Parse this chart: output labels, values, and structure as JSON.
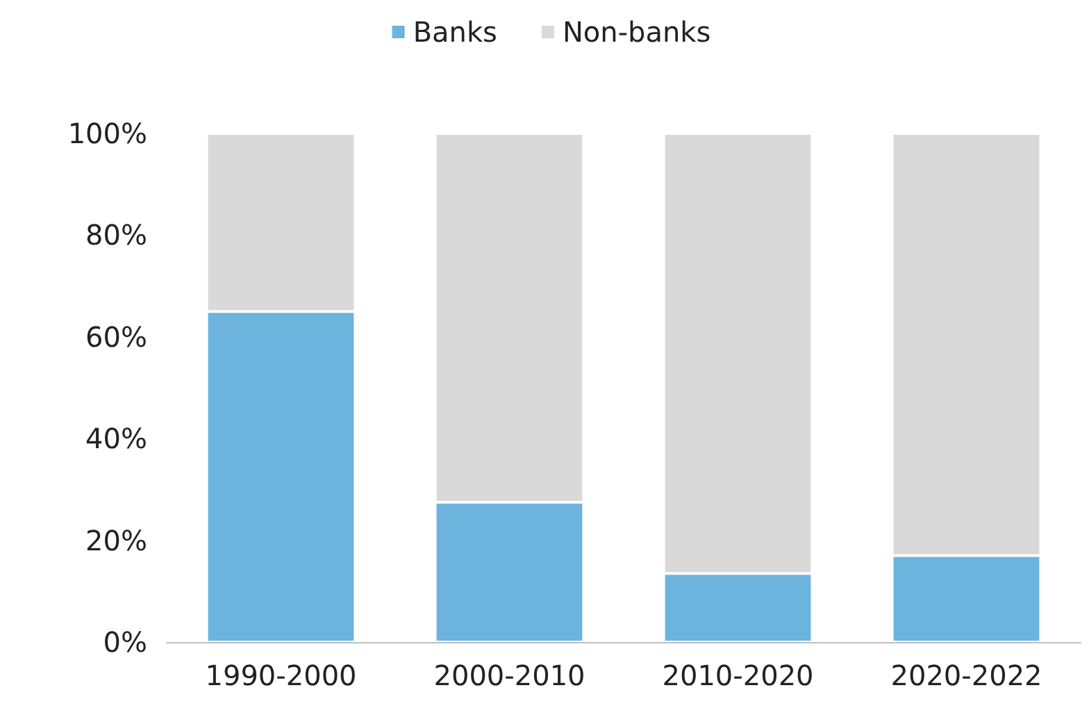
{
  "chart_data": {
    "type": "bar",
    "stacked": true,
    "categories": [
      "1990-2000",
      "2000-2010",
      "2010-2020",
      "2020-2022"
    ],
    "series": [
      {
        "name": "Banks",
        "color": "#6cb4dd",
        "values": [
          65,
          27.5,
          13.5,
          17
        ]
      },
      {
        "name": "Non-banks",
        "color": "#d9d9d9",
        "values": [
          35,
          72.5,
          86.5,
          83
        ]
      }
    ],
    "ylim": [
      0,
      100
    ],
    "yticks": [
      {
        "value": 0,
        "label": "0%"
      },
      {
        "value": 20,
        "label": "20%"
      },
      {
        "value": 40,
        "label": "40%"
      },
      {
        "value": 60,
        "label": "60%"
      },
      {
        "value": 80,
        "label": "80%"
      },
      {
        "value": 100,
        "label": "100%"
      }
    ],
    "grid": false,
    "legend": "top"
  }
}
